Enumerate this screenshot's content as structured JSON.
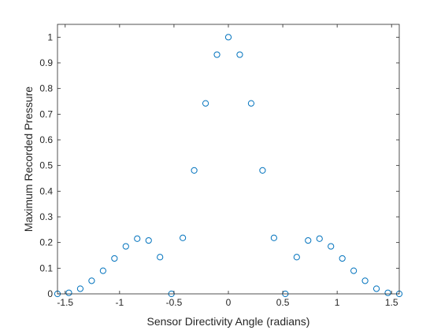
{
  "chart_data": {
    "type": "scatter",
    "xlabel": "Sensor Directivity Angle (radians)",
    "ylabel": "Maximum Recorded Pressure",
    "xlim": [
      -1.5708,
      1.5708
    ],
    "ylim": [
      0,
      1.05
    ],
    "xticks": [
      -1.5,
      -1,
      -0.5,
      0,
      0.5,
      1,
      1.5
    ],
    "xtick_labels": [
      "-1.5",
      "-1",
      "-0.5",
      "0",
      "0.5",
      "1",
      "1.5"
    ],
    "yticks": [
      0,
      0.1,
      0.2,
      0.3,
      0.4,
      0.5,
      0.6,
      0.7,
      0.8,
      0.9,
      1
    ],
    "ytick_labels": [
      "0",
      "0.1",
      "0.2",
      "0.3",
      "0.4",
      "0.5",
      "0.6",
      "0.7",
      "0.8",
      "0.9",
      "1"
    ],
    "grid": false,
    "marker": "open-circle",
    "colors": {
      "marker": "#0072BD",
      "axis": "#262626",
      "box": "#262626"
    },
    "points": [
      {
        "x": -1.5708,
        "y": 0.0
      },
      {
        "x": -1.4661,
        "y": 0.004
      },
      {
        "x": -1.3614,
        "y": 0.02
      },
      {
        "x": -1.2566,
        "y": 0.051
      },
      {
        "x": -1.1519,
        "y": 0.09
      },
      {
        "x": -1.0472,
        "y": 0.138
      },
      {
        "x": -0.9425,
        "y": 0.185
      },
      {
        "x": -0.8378,
        "y": 0.215
      },
      {
        "x": -0.733,
        "y": 0.208
      },
      {
        "x": -0.6283,
        "y": 0.143
      },
      {
        "x": -0.5236,
        "y": 0.0
      },
      {
        "x": -0.4189,
        "y": 0.218
      },
      {
        "x": -0.3142,
        "y": 0.481
      },
      {
        "x": -0.2094,
        "y": 0.742
      },
      {
        "x": -0.1047,
        "y": 0.932
      },
      {
        "x": 0.0,
        "y": 1.0
      },
      {
        "x": 0.1047,
        "y": 0.932
      },
      {
        "x": 0.2094,
        "y": 0.742
      },
      {
        "x": 0.3142,
        "y": 0.481
      },
      {
        "x": 0.4189,
        "y": 0.218
      },
      {
        "x": 0.5236,
        "y": 0.0
      },
      {
        "x": 0.6283,
        "y": 0.143
      },
      {
        "x": 0.733,
        "y": 0.208
      },
      {
        "x": 0.8378,
        "y": 0.215
      },
      {
        "x": 0.9425,
        "y": 0.185
      },
      {
        "x": 1.0472,
        "y": 0.138
      },
      {
        "x": 1.1519,
        "y": 0.09
      },
      {
        "x": 1.2566,
        "y": 0.051
      },
      {
        "x": 1.3614,
        "y": 0.02
      },
      {
        "x": 1.4661,
        "y": 0.004
      },
      {
        "x": 1.5708,
        "y": 0.0
      }
    ]
  }
}
